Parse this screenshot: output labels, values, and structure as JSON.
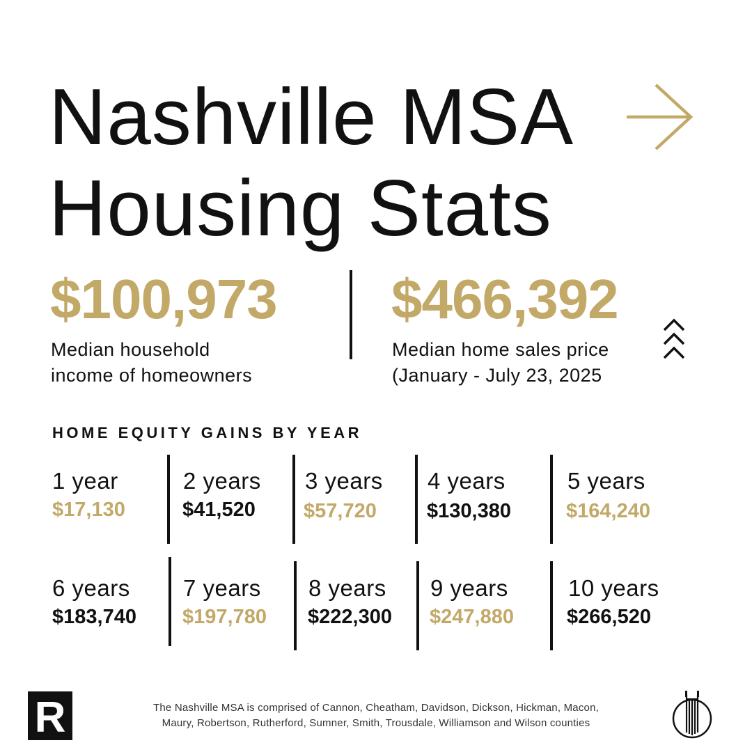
{
  "title": {
    "line1": "Nashville MSA",
    "line2": "Housing Stats"
  },
  "headline_stats": [
    {
      "value": "$100,973",
      "label_line1": "Median household",
      "label_line2": "income of homeowners"
    },
    {
      "value": "$466,392",
      "label_line1": "Median home sales price",
      "label_line2": "(January - July 23, 2025"
    }
  ],
  "equity": {
    "heading": "HOME EQUITY GAINS BY YEAR",
    "items": [
      {
        "label": "1 year",
        "value": "$17,130"
      },
      {
        "label": "2 years",
        "value": "$41,520"
      },
      {
        "label": "3 years",
        "value": "$57,720"
      },
      {
        "label": "4 years",
        "value": "$130,380"
      },
      {
        "label": "5 years",
        "value": "$164,240"
      },
      {
        "label": "6 years",
        "value": "$183,740"
      },
      {
        "label": "7 years",
        "value": "$197,780"
      },
      {
        "label": "8 years",
        "value": "$222,300"
      },
      {
        "label": "9 years",
        "value": "$247,880"
      },
      {
        "label": "10 years",
        "value": "$266,520"
      }
    ]
  },
  "footer": {
    "note_line1": "The Nashville MSA is comprised of Cannon, Cheatham, Davidson, Dickson, Hickman, Macon,",
    "note_line2": "Maury, Robertson, Rutherford, Sumner, Smith, Trousdale, Williamson and Wilson counties",
    "left_logo_letter": "R"
  },
  "icons": {
    "title_arrow": "arrow-right-icon",
    "price_trend": "triple-chevron-up-icon",
    "left_logo": "realtor-r-logo",
    "right_logo": "building-tower-logo"
  },
  "colors": {
    "gold": "#c2a968",
    "black": "#111111",
    "background": "#ffffff"
  }
}
